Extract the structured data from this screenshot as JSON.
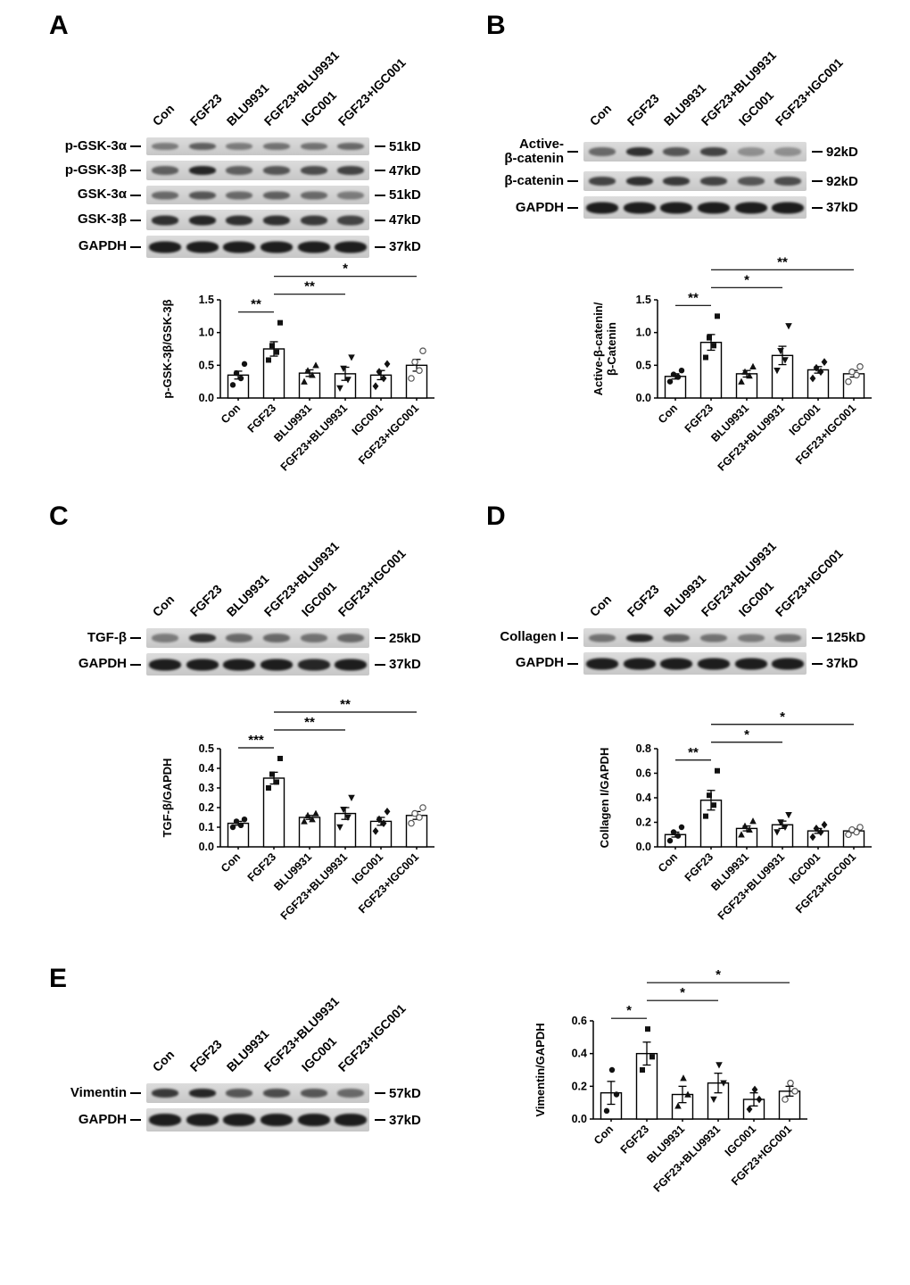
{
  "lane_labels": [
    "Con",
    "FGF23",
    "BLU9931",
    "FGF23+BLU9931",
    "IGC001",
    "FGF23+IGC001"
  ],
  "marker_shapes": [
    "circle-filled",
    "square-filled",
    "triangle-up-filled",
    "triangle-down-filled",
    "diamond-filled",
    "circle-open"
  ],
  "colors": {
    "bar_fill": "#ffffff",
    "bar_stroke": "#000000",
    "marker": "#111111",
    "band": "#141414",
    "strip_bg": "#d4d4d4"
  },
  "panels": [
    {
      "id": "A",
      "label": "A",
      "blot_rows": [
        {
          "protein": "p-GSK-3α",
          "mw": "51kD",
          "band_height": 8,
          "intensities": [
            0.45,
            0.6,
            0.45,
            0.5,
            0.5,
            0.55
          ]
        },
        {
          "protein": "p-GSK-3β",
          "mw": "47kD",
          "band_height": 10,
          "intensities": [
            0.6,
            0.9,
            0.6,
            0.65,
            0.7,
            0.75
          ]
        },
        {
          "protein": "GSK-3α",
          "mw": "51kD",
          "band_height": 9,
          "intensities": [
            0.55,
            0.65,
            0.55,
            0.6,
            0.55,
            0.45
          ]
        },
        {
          "protein": "GSK-3β",
          "mw": "47kD",
          "band_height": 11,
          "intensities": [
            0.85,
            0.9,
            0.85,
            0.85,
            0.8,
            0.75
          ]
        },
        {
          "protein": "GAPDH",
          "mw": "37kD",
          "band_height": 13,
          "intensities": [
            0.95,
            0.95,
            0.95,
            0.95,
            0.95,
            0.95
          ]
        }
      ]
    },
    {
      "id": "B",
      "label": "B",
      "blot_rows": [
        {
          "protein": "Active-\nβ-catenin",
          "mw": "92kD",
          "band_height": 10,
          "intensities": [
            0.55,
            0.85,
            0.65,
            0.75,
            0.35,
            0.35
          ]
        },
        {
          "protein": "β-catenin",
          "mw": "92kD",
          "band_height": 10,
          "intensities": [
            0.75,
            0.85,
            0.8,
            0.75,
            0.65,
            0.7
          ]
        },
        {
          "protein": "GAPDH",
          "mw": "37kD",
          "band_height": 13,
          "intensities": [
            0.95,
            0.95,
            0.95,
            0.95,
            0.95,
            0.95
          ]
        }
      ]
    },
    {
      "id": "C",
      "label": "C",
      "blot_rows": [
        {
          "protein": "TGF-β",
          "mw": "25kD",
          "band_height": 10,
          "intensities": [
            0.45,
            0.85,
            0.55,
            0.55,
            0.5,
            0.55
          ]
        },
        {
          "protein": "GAPDH",
          "mw": "37kD",
          "band_height": 13,
          "intensities": [
            0.95,
            0.95,
            0.95,
            0.95,
            0.9,
            0.95
          ]
        }
      ]
    },
    {
      "id": "D",
      "label": "D",
      "blot_rows": [
        {
          "protein": "Collagen I",
          "mw": "125kD",
          "band_height": 9,
          "intensities": [
            0.5,
            0.9,
            0.6,
            0.5,
            0.45,
            0.5
          ]
        },
        {
          "protein": "GAPDH",
          "mw": "37kD",
          "band_height": 13,
          "intensities": [
            0.95,
            0.95,
            0.95,
            0.95,
            0.95,
            0.95
          ]
        }
      ]
    },
    {
      "id": "E",
      "label": "E",
      "blot_rows": [
        {
          "protein": "Vimentin",
          "mw": "57kD",
          "band_height": 10,
          "intensities": [
            0.8,
            0.9,
            0.65,
            0.7,
            0.65,
            0.55
          ]
        },
        {
          "protein": "GAPDH",
          "mw": "37kD",
          "band_height": 14,
          "intensities": [
            0.95,
            0.95,
            0.95,
            0.95,
            0.95,
            0.95
          ]
        }
      ]
    }
  ],
  "chart_data": [
    {
      "panel": "A",
      "type": "bar",
      "title": "",
      "ylabel": "p-GSK-3β/GSK-3β",
      "xlabel": "",
      "ylim": [
        0,
        1.5
      ],
      "yticks": [
        0,
        0.5,
        1.0,
        1.5
      ],
      "categories": [
        "Con",
        "FGF23",
        "BLU9931",
        "FGF23+BLU9931",
        "IGC001",
        "FGF23+IGC001"
      ],
      "values": [
        0.35,
        0.75,
        0.38,
        0.37,
        0.35,
        0.5
      ],
      "errors": [
        0.06,
        0.11,
        0.05,
        0.1,
        0.07,
        0.09
      ],
      "points": [
        [
          0.2,
          0.3,
          0.38,
          0.52
        ],
        [
          0.58,
          0.7,
          0.8,
          1.15
        ],
        [
          0.25,
          0.35,
          0.42,
          0.5
        ],
        [
          0.15,
          0.28,
          0.45,
          0.62
        ],
        [
          0.18,
          0.3,
          0.4,
          0.52
        ],
        [
          0.3,
          0.42,
          0.55,
          0.72
        ]
      ],
      "significance": [
        {
          "from": 0,
          "to": 1,
          "label": "**"
        },
        {
          "from": 1,
          "to": 3,
          "label": "**"
        },
        {
          "from": 1,
          "to": 5,
          "label": "*"
        }
      ]
    },
    {
      "panel": "B",
      "type": "bar",
      "title": "",
      "ylabel": "Active-β-catenin/\nβ-Catenin",
      "xlabel": "",
      "ylim": [
        0,
        1.5
      ],
      "yticks": [
        0,
        0.5,
        1.0,
        1.5
      ],
      "categories": [
        "Con",
        "FGF23",
        "BLU9931",
        "FGF23+BLU9931",
        "IGC001",
        "FGF23+IGC001"
      ],
      "values": [
        0.33,
        0.85,
        0.37,
        0.65,
        0.43,
        0.37
      ],
      "errors": [
        0.04,
        0.12,
        0.05,
        0.14,
        0.05,
        0.05
      ],
      "points": [
        [
          0.25,
          0.32,
          0.36,
          0.42
        ],
        [
          0.62,
          0.8,
          0.92,
          1.25
        ],
        [
          0.25,
          0.34,
          0.4,
          0.48
        ],
        [
          0.42,
          0.58,
          0.72,
          1.1
        ],
        [
          0.3,
          0.4,
          0.46,
          0.55
        ],
        [
          0.25,
          0.35,
          0.4,
          0.48
        ]
      ],
      "significance": [
        {
          "from": 0,
          "to": 1,
          "label": "**"
        },
        {
          "from": 1,
          "to": 3,
          "label": "*"
        },
        {
          "from": 1,
          "to": 5,
          "label": "**"
        }
      ]
    },
    {
      "panel": "C",
      "type": "bar",
      "title": "",
      "ylabel": "TGF-β/GAPDH",
      "xlabel": "",
      "ylim": [
        0,
        0.5
      ],
      "yticks": [
        0,
        0.1,
        0.2,
        0.3,
        0.4,
        0.5
      ],
      "categories": [
        "Con",
        "FGF23",
        "BLU9931",
        "FGF23+BLU9931",
        "IGC001",
        "FGF23+IGC001"
      ],
      "values": [
        0.12,
        0.35,
        0.15,
        0.17,
        0.13,
        0.16
      ],
      "errors": [
        0.01,
        0.03,
        0.01,
        0.03,
        0.02,
        0.02
      ],
      "points": [
        [
          0.1,
          0.11,
          0.13,
          0.14
        ],
        [
          0.3,
          0.33,
          0.37,
          0.45
        ],
        [
          0.13,
          0.14,
          0.16,
          0.17
        ],
        [
          0.1,
          0.15,
          0.19,
          0.25
        ],
        [
          0.08,
          0.12,
          0.14,
          0.18
        ],
        [
          0.12,
          0.15,
          0.17,
          0.2
        ]
      ],
      "significance": [
        {
          "from": 0,
          "to": 1,
          "label": "***"
        },
        {
          "from": 1,
          "to": 3,
          "label": "**"
        },
        {
          "from": 1,
          "to": 5,
          "label": "**"
        }
      ]
    },
    {
      "panel": "D",
      "type": "bar",
      "title": "",
      "ylabel": "Collagen I/GAPDH",
      "xlabel": "",
      "ylim": [
        0,
        0.8
      ],
      "yticks": [
        0,
        0.2,
        0.4,
        0.6,
        0.8
      ],
      "categories": [
        "Con",
        "FGF23",
        "BLU9931",
        "FGF23+BLU9931",
        "IGC001",
        "FGF23+IGC001"
      ],
      "values": [
        0.1,
        0.38,
        0.15,
        0.18,
        0.13,
        0.13
      ],
      "errors": [
        0.02,
        0.08,
        0.02,
        0.03,
        0.02,
        0.015
      ],
      "points": [
        [
          0.05,
          0.09,
          0.12,
          0.16
        ],
        [
          0.25,
          0.34,
          0.42,
          0.62
        ],
        [
          0.1,
          0.14,
          0.17,
          0.21
        ],
        [
          0.12,
          0.16,
          0.2,
          0.26
        ],
        [
          0.08,
          0.12,
          0.15,
          0.18
        ],
        [
          0.1,
          0.12,
          0.14,
          0.16
        ]
      ],
      "significance": [
        {
          "from": 0,
          "to": 1,
          "label": "**"
        },
        {
          "from": 1,
          "to": 3,
          "label": "*"
        },
        {
          "from": 1,
          "to": 5,
          "label": "*"
        }
      ]
    },
    {
      "panel": "E",
      "type": "bar",
      "title": "",
      "ylabel": "Vimentin/GAPDH",
      "xlabel": "",
      "ylim": [
        0,
        0.6
      ],
      "yticks": [
        0,
        0.2,
        0.4,
        0.6
      ],
      "categories": [
        "Con",
        "FGF23",
        "BLU9931",
        "FGF23+BLU9931",
        "IGC001",
        "FGF23+IGC001"
      ],
      "values": [
        0.16,
        0.4,
        0.15,
        0.22,
        0.12,
        0.17
      ],
      "errors": [
        0.07,
        0.07,
        0.05,
        0.06,
        0.04,
        0.03
      ],
      "points": [
        [
          0.05,
          0.15,
          0.3
        ],
        [
          0.3,
          0.38,
          0.55
        ],
        [
          0.08,
          0.15,
          0.25
        ],
        [
          0.12,
          0.22,
          0.33
        ],
        [
          0.06,
          0.12,
          0.18
        ],
        [
          0.12,
          0.17,
          0.22
        ]
      ],
      "significance": [
        {
          "from": 0,
          "to": 1,
          "label": "*"
        },
        {
          "from": 1,
          "to": 3,
          "label": "*"
        },
        {
          "from": 1,
          "to": 5,
          "label": "*"
        }
      ]
    }
  ]
}
